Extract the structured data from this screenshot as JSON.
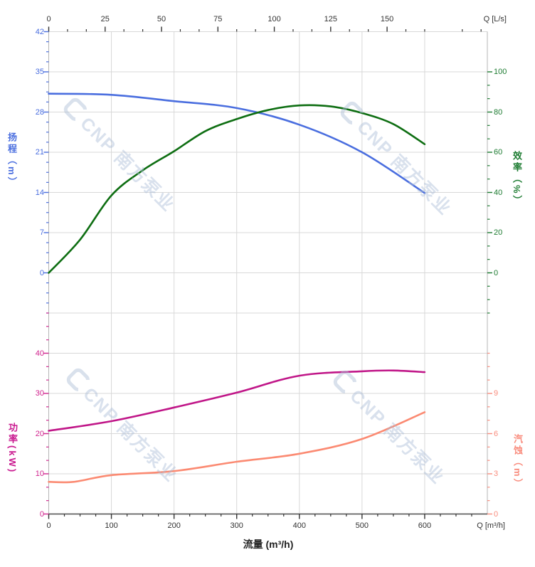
{
  "watermark": {
    "text": "CNP 南方泵业"
  },
  "axes": {
    "top_flow": {
      "unit_label": "Q [L/s]",
      "ticks": [
        0,
        25,
        50,
        75,
        100,
        125,
        150
      ]
    },
    "bottom_flow": {
      "unit_label": "Q [m³/h]",
      "axis_title": "流量 (m³/h)",
      "ticks": [
        0,
        100,
        200,
        300,
        400,
        500,
        600
      ]
    },
    "head": {
      "title": "扬程（m）",
      "ticks": [
        42,
        35,
        28,
        21,
        14,
        7,
        0
      ],
      "color": "#4a6edf"
    },
    "efficiency": {
      "title": "效率（%）",
      "ticks": [
        100,
        80,
        60,
        40,
        20,
        0
      ],
      "color": "#1e7c32"
    },
    "power": {
      "title": "功率(kW)",
      "ticks": [
        40,
        30,
        20,
        10,
        0
      ],
      "color": "#d1258f"
    },
    "npsh": {
      "title": "汽蚀（m）",
      "ticks": [
        9,
        6,
        3,
        0
      ],
      "color": "#f98c7d"
    }
  },
  "chart_data": {
    "type": "line",
    "title": "",
    "x_label_top": "Q [L/s]",
    "x_label_bottom": "流量 (m³/h)",
    "x_range_m3h": [
      0,
      700
    ],
    "grid": true,
    "series": [
      {
        "name": "扬程",
        "unit": "m",
        "y_axis": "head",
        "ylim": [
          0,
          42
        ],
        "color": "#4a6edf",
        "x_m3h": [
          0,
          100,
          200,
          300,
          400,
          500,
          600
        ],
        "y": [
          31.2,
          31.0,
          29.9,
          28.7,
          25.8,
          21.0,
          13.9
        ]
      },
      {
        "name": "效率",
        "unit": "%",
        "y_axis": "efficiency",
        "ylim": [
          0,
          100
        ],
        "color": "#0e6e12",
        "x_m3h": [
          0,
          50,
          100,
          150,
          200,
          250,
          300,
          350,
          400,
          450,
          500,
          550,
          600
        ],
        "y": [
          0,
          16.5,
          38.5,
          51,
          60.5,
          70.5,
          76.5,
          81,
          83.3,
          82.8,
          79.5,
          74,
          64
        ]
      },
      {
        "name": "功率",
        "unit": "kW",
        "y_axis": "power",
        "ylim": [
          0,
          40
        ],
        "color": "#c01688",
        "x_m3h": [
          0,
          100,
          200,
          300,
          400,
          500,
          550,
          600
        ],
        "y": [
          20.7,
          23.1,
          26.5,
          30.2,
          34.4,
          35.5,
          35.7,
          35.3
        ]
      },
      {
        "name": "汽蚀",
        "unit": "m",
        "y_axis": "npsh",
        "ylim": [
          0,
          9
        ],
        "color": "#fb8a72",
        "x_m3h": [
          0,
          40,
          100,
          200,
          300,
          400,
          500,
          600
        ],
        "y": [
          2.4,
          2.4,
          2.9,
          3.2,
          3.9,
          4.5,
          5.6,
          7.6
        ]
      }
    ]
  }
}
